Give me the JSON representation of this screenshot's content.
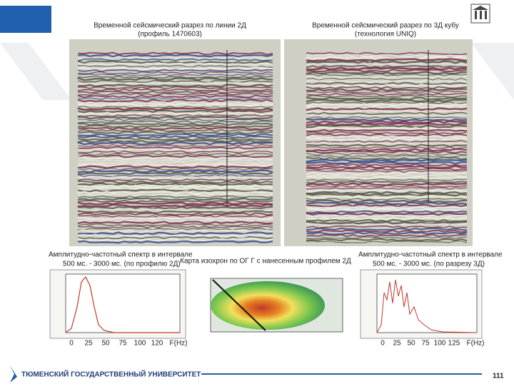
{
  "panels": [
    {
      "title": [
        "Временной сейсмический разрез по линии 2Д",
        "(профиль 1470603)"
      ]
    },
    {
      "title": [
        "Временной сейсмический разрез по 3Д кубу",
        "(технология UNIQ)"
      ]
    }
  ],
  "spectra": [
    {
      "caption": [
        "Амплитудно-частотный спектр в интервале",
        "500 мс. - 3000 мс. (по профилю 2Д)"
      ],
      "xticks": [
        0,
        25,
        50,
        75,
        100,
        120
      ],
      "xlabel": "F(Hz)"
    },
    {
      "caption": [
        "Амплитудно-частотный спектр в интервале",
        "500 мс. - 3000 мс. (по разрезу 3Д)"
      ],
      "xticks": [
        0,
        25,
        50,
        75,
        100,
        125
      ],
      "xlabel": "F(Hz)"
    }
  ],
  "map": {
    "caption": "Карта изохрон по ОГ Г с нанесенным профилем 2Д"
  },
  "footer": {
    "university": "ТЮМЕНСКИЙ ГОСУДАРСТВЕННЫЙ УНИВЕРСИТЕТ",
    "page": 111
  }
}
